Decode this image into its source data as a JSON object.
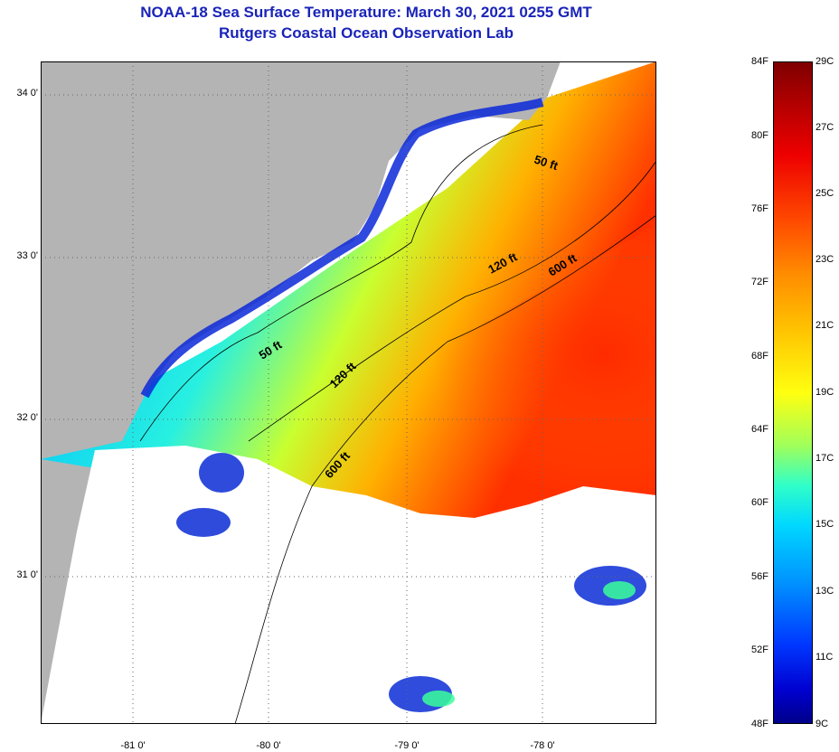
{
  "title": "NOAA-18 Sea Surface Temperature:  March 30, 2021 0255 GMT",
  "subtitle": "Rutgers Coastal Ocean Observation Lab",
  "lat_labels": [
    "34 0'",
    "33 0'",
    "32 0'",
    "31 0'"
  ],
  "lon_labels": [
    "-81 0'",
    "-80 0'",
    "-79 0'",
    "-78 0'"
  ],
  "contour_labels": [
    "50 ft",
    "50 ft",
    "120 ft",
    "120 ft",
    "600 ft",
    "600 ft"
  ],
  "colorbar": {
    "f_labels": [
      "84F",
      "80F",
      "76F",
      "72F",
      "68F",
      "64F",
      "60F",
      "56F",
      "52F",
      "48F"
    ],
    "c_labels": [
      "29C",
      "27C",
      "25C",
      "23C",
      "21C",
      "19C",
      "17C",
      "15C",
      "13C",
      "11C",
      "9C"
    ]
  },
  "colors": {
    "title": "#1a24b8",
    "land": "#b4b4b4",
    "clouds": "#ffffff"
  }
}
